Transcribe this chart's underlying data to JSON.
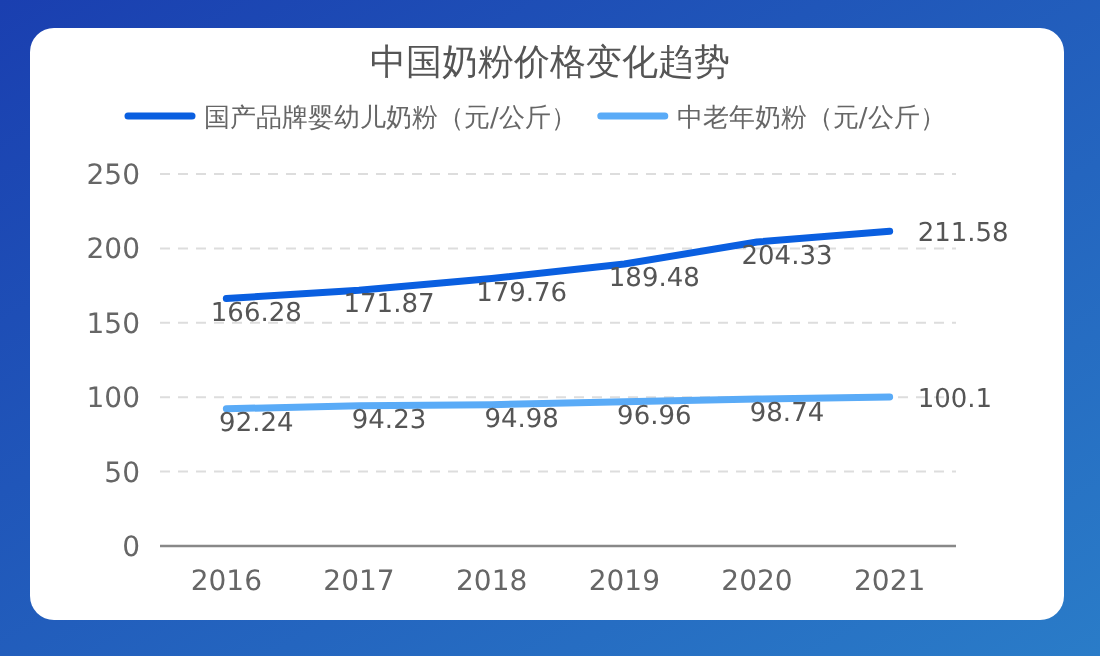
{
  "chart_data": {
    "type": "line",
    "title": "中国奶粉价格变化趋势",
    "categories": [
      "2016",
      "2017",
      "2018",
      "2019",
      "2020",
      "2021"
    ],
    "series": [
      {
        "name": "国产品牌婴幼儿奶粉（元/公斤）",
        "color": "#0a5fe0",
        "values": [
          166.28,
          171.87,
          179.76,
          189.48,
          204.33,
          211.58
        ]
      },
      {
        "name": "中老年奶粉（元/公斤）",
        "color": "#5aabf7",
        "values": [
          92.24,
          94.23,
          94.98,
          96.96,
          98.74,
          100.1
        ]
      }
    ],
    "ylim": [
      0,
      250
    ],
    "yticks": [
      0,
      50,
      100,
      150,
      200,
      250
    ],
    "grid": "y",
    "legend": "top",
    "data_labels": true,
    "marker": "none",
    "line_style": "solid"
  }
}
